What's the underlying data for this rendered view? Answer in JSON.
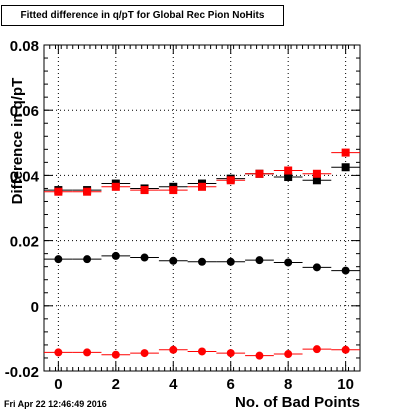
{
  "chart_data": {
    "type": "scatter",
    "title": "Fitted difference in q/pT for Global Rec Pion NoHits",
    "xlabel": "No. of Bad Points",
    "ylabel": "Difference in q/pT",
    "xlim": [
      -0.5,
      10.5
    ],
    "ylim": [
      -0.02,
      0.08
    ],
    "x_ticks": [
      "0",
      "2",
      "4",
      "6",
      "8",
      "10"
    ],
    "y_ticks": [
      "-0.02",
      "0",
      "0.02",
      "0.04",
      "0.06",
      "0.08"
    ],
    "grid": true,
    "x": [
      0,
      1,
      2,
      3,
      4,
      5,
      6,
      7,
      8,
      9,
      10
    ],
    "series": [
      {
        "marker": "square",
        "color": "#000000",
        "values": [
          0.0355,
          0.0355,
          0.0375,
          0.036,
          0.0365,
          0.0375,
          0.039,
          0.0405,
          0.0395,
          0.0385,
          0.0425
        ]
      },
      {
        "marker": "square",
        "color": "#ff0000",
        "values": [
          0.035,
          0.035,
          0.0365,
          0.0355,
          0.0355,
          0.0365,
          0.0385,
          0.0405,
          0.0415,
          0.0405,
          0.047
        ]
      },
      {
        "marker": "circle",
        "color": "#000000",
        "values": [
          0.0143,
          0.0143,
          0.0153,
          0.0148,
          0.0138,
          0.0135,
          0.0135,
          0.014,
          0.0133,
          0.0118,
          0.0108
        ]
      },
      {
        "marker": "circle",
        "color": "#ff0000",
        "values": [
          -0.0143,
          -0.0143,
          -0.015,
          -0.0145,
          -0.0135,
          -0.014,
          -0.0145,
          -0.0153,
          -0.0148,
          -0.0133,
          -0.0135
        ]
      }
    ]
  },
  "footer": {
    "datestamp": "Fri Apr 22 12:46:49 2016"
  }
}
